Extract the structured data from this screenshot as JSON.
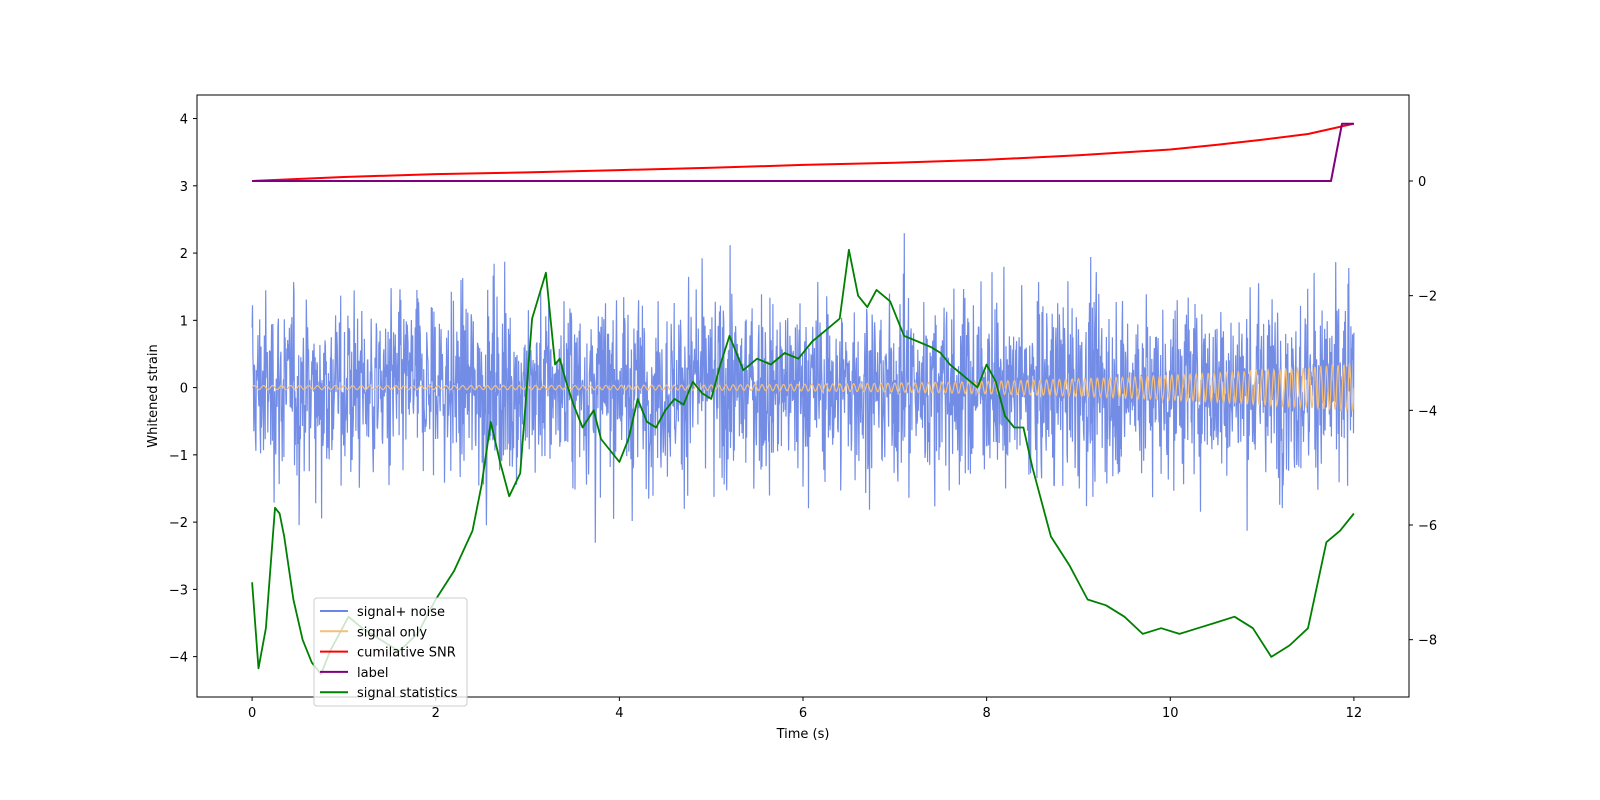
{
  "chart_data": {
    "type": "line",
    "xlabel": "Time (s)",
    "ylabel": "Whitened strain",
    "xlim": [
      -0.6,
      12.6
    ],
    "ylim": [
      -4.6,
      4.35
    ],
    "ylim_right": [
      -9.0,
      1.5
    ],
    "x_ticks": [
      0,
      2,
      4,
      6,
      8,
      10,
      12
    ],
    "y_ticks": [
      -4,
      -3,
      -2,
      -1,
      0,
      1,
      2,
      3,
      4
    ],
    "y_ticks_right": [
      -8,
      -6,
      -4,
      -2,
      0
    ],
    "grid": false,
    "legend_position": "lower-left",
    "colors": {
      "signal_noise": "#6b87e6",
      "signal_only": "#f5bf7a",
      "snr": "#ff0000",
      "label": "#800080",
      "statistics": "#008000"
    },
    "series": [
      {
        "name": "signal+ noise",
        "axis": "left",
        "description_of_shape": "dense noise",
        "x_range": [
          0,
          12
        ],
        "noise_envelope": [
          -3,
          3
        ]
      },
      {
        "name": "signal only",
        "axis": "left",
        "x_range": [
          0,
          12
        ],
        "amplitude_start": 0.03,
        "amplitude_end": 0.35
      },
      {
        "name": "cumilative SNR",
        "axis": "right",
        "x": [
          0,
          1,
          2,
          3,
          4,
          5,
          6,
          7,
          8,
          9,
          10,
          10.5,
          11,
          11.5,
          12
        ],
        "y": [
          0.0,
          0.07,
          0.12,
          0.15,
          0.19,
          0.23,
          0.28,
          0.32,
          0.37,
          0.45,
          0.55,
          0.63,
          0.72,
          0.82,
          1.0
        ]
      },
      {
        "name": "label",
        "axis": "right",
        "x": [
          0,
          11.75,
          11.87,
          12.0
        ],
        "y": [
          0,
          0,
          1.0,
          1.0
        ]
      },
      {
        "name": "signal statistics",
        "axis": "right",
        "x": [
          0,
          0.07,
          0.15,
          0.25,
          0.3,
          0.35,
          0.45,
          0.55,
          0.65,
          0.75,
          0.85,
          0.95,
          1.05,
          1.2,
          1.4,
          1.6,
          1.8,
          2.0,
          2.2,
          2.4,
          2.5,
          2.6,
          2.7,
          2.8,
          2.92,
          3.05,
          3.2,
          3.3,
          3.35,
          3.42,
          3.5,
          3.6,
          3.72,
          3.8,
          3.9,
          4.0,
          4.1,
          4.2,
          4.3,
          4.4,
          4.5,
          4.6,
          4.7,
          4.8,
          4.9,
          5.0,
          5.1,
          5.2,
          5.35,
          5.5,
          5.65,
          5.8,
          5.95,
          6.1,
          6.25,
          6.4,
          6.5,
          6.6,
          6.7,
          6.8,
          6.95,
          7.1,
          7.25,
          7.4,
          7.5,
          7.6,
          7.75,
          7.9,
          8.0,
          8.1,
          8.2,
          8.3,
          8.4,
          8.5,
          8.7,
          8.9,
          9.1,
          9.3,
          9.5,
          9.7,
          9.9,
          10.1,
          10.3,
          10.5,
          10.7,
          10.9,
          11.1,
          11.3,
          11.5,
          11.7,
          11.85,
          12.0
        ],
        "y": [
          -7.0,
          -8.5,
          -7.8,
          -5.7,
          -5.8,
          -6.2,
          -7.3,
          -8.0,
          -8.4,
          -8.6,
          -8.2,
          -7.9,
          -7.6,
          -7.8,
          -8.0,
          -8.2,
          -7.9,
          -7.3,
          -6.8,
          -6.1,
          -5.3,
          -4.2,
          -4.9,
          -5.5,
          -5.1,
          -2.4,
          -1.6,
          -3.2,
          -3.1,
          -3.5,
          -3.9,
          -4.3,
          -4.0,
          -4.5,
          -4.7,
          -4.9,
          -4.5,
          -3.8,
          -4.2,
          -4.3,
          -4.0,
          -3.8,
          -3.9,
          -3.5,
          -3.7,
          -3.8,
          -3.2,
          -2.7,
          -3.3,
          -3.1,
          -3.2,
          -3.0,
          -3.1,
          -2.8,
          -2.6,
          -2.4,
          -1.2,
          -2.0,
          -2.2,
          -1.9,
          -2.1,
          -2.7,
          -2.8,
          -2.9,
          -3.0,
          -3.2,
          -3.4,
          -3.6,
          -3.2,
          -3.5,
          -4.1,
          -4.3,
          -4.3,
          -5.0,
          -6.2,
          -6.7,
          -7.3,
          -7.4,
          -7.6,
          -7.9,
          -7.8,
          -7.9,
          -7.8,
          -7.7,
          -7.6,
          -7.8,
          -8.3,
          -8.1,
          -7.8,
          -6.3,
          -6.1,
          -5.8
        ]
      }
    ]
  }
}
